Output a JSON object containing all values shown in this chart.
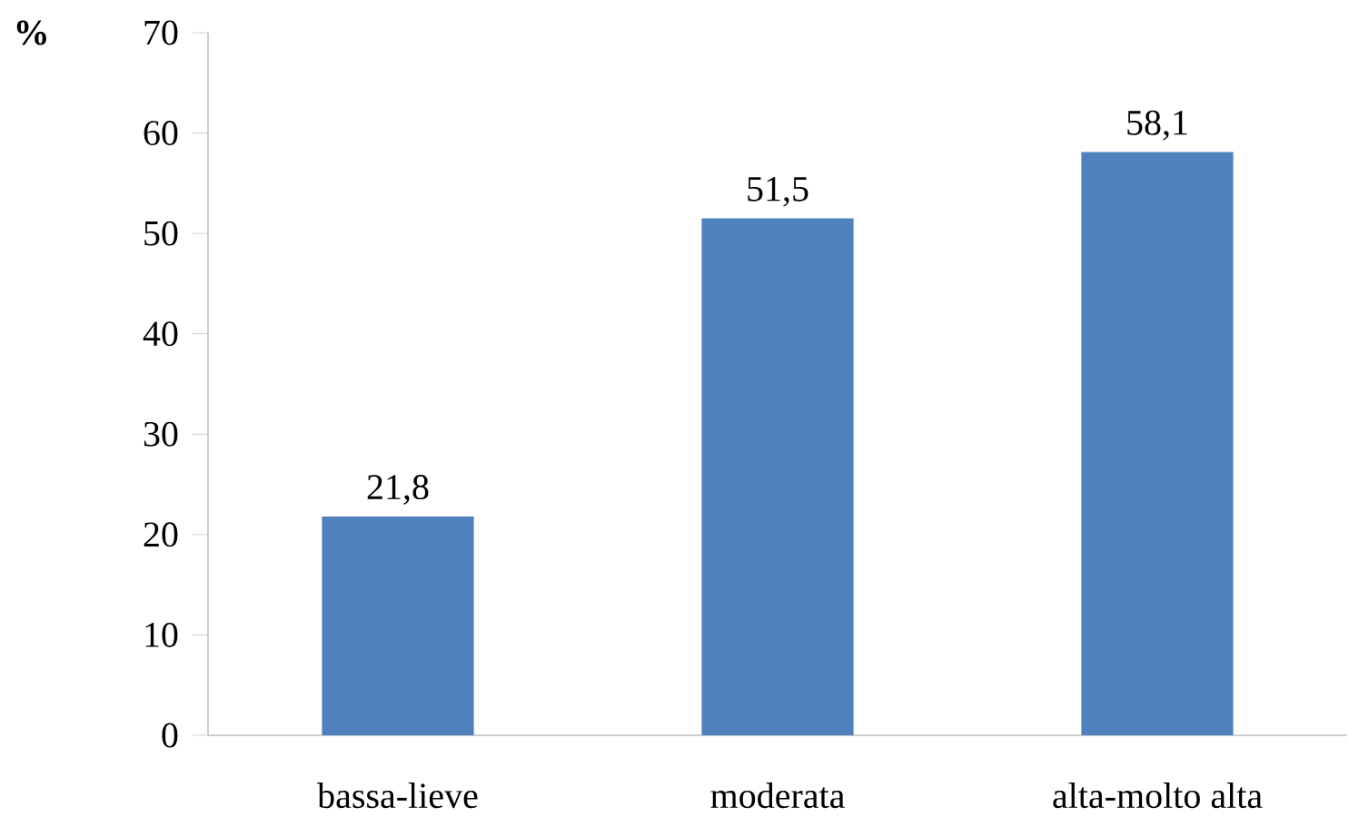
{
  "chart_data": {
    "type": "bar",
    "ylabel": "%",
    "categories": [
      "bassa-lieve",
      "moderata",
      "alta-molto alta"
    ],
    "values": [
      21.8,
      51.5,
      58.1
    ],
    "value_labels": [
      "21,8",
      "51,5",
      "58,1"
    ],
    "color": "#4f81bd",
    "ylim": [
      0,
      70
    ],
    "yticks": [
      0,
      10,
      20,
      30,
      40,
      50,
      60,
      70
    ]
  }
}
